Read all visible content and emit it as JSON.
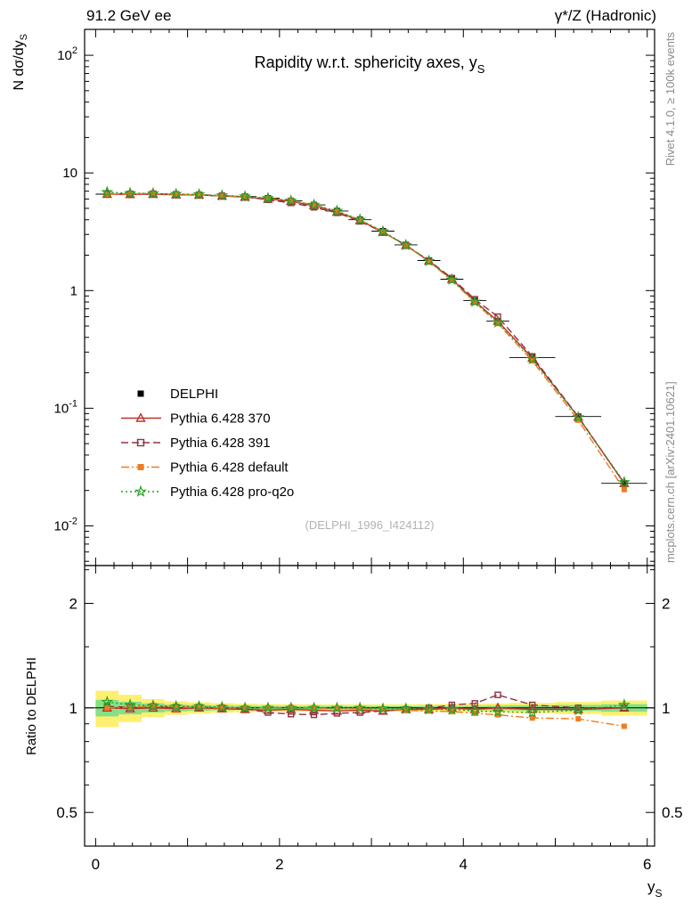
{
  "header": {
    "left": "91.2 GeV ee",
    "right": "γ*/Z (Hadronic)"
  },
  "side_notes": {
    "top_right": "Rivet 4.1.0, ≥ 100k events",
    "bottom_right": "mcplots.cern.ch [arXiv:2401.10621]"
  },
  "watermark": "(DELPHI_1996_I424112)",
  "chart_data": {
    "type": "line",
    "title_main": "Rapidity w.r.t. sphericity axes, y",
    "title_sub": "S",
    "xlabel_main": "y",
    "xlabel_sub": "S",
    "ylabel_top_main": "N  dσ/dy",
    "ylabel_top_sub": "S",
    "ylabel_bottom": "Ratio to DELPHI",
    "x_range": [
      -0.12,
      6.08
    ],
    "x_tick_labels": [
      {
        "v": 0,
        "label": "0"
      },
      {
        "v": 2,
        "label": "2"
      },
      {
        "v": 4,
        "label": "4"
      },
      {
        "v": 6,
        "label": "6"
      }
    ],
    "y_scale_top": "log",
    "y_range_top": [
      0.0046,
      166
    ],
    "y_tick_labels_top": [
      {
        "v": 100,
        "base": "10",
        "exp": "2"
      },
      {
        "v": 10,
        "base": "10",
        "exp": ""
      },
      {
        "v": 1,
        "base": "1",
        "exp": ""
      },
      {
        "v": 0.1,
        "base": "10",
        "exp": "-1"
      },
      {
        "v": 0.01,
        "base": "10",
        "exp": "-2"
      }
    ],
    "ratio_range": [
      0.4,
      2.57
    ],
    "ratio_tick_labels": [
      {
        "v": 2,
        "label": "2"
      },
      {
        "v": 1,
        "label": "1"
      },
      {
        "v": 0.5,
        "label": "0.5"
      }
    ],
    "x": [
      0.125,
      0.375,
      0.625,
      0.875,
      1.125,
      1.375,
      1.625,
      1.875,
      2.125,
      2.375,
      2.625,
      2.875,
      3.125,
      3.375,
      3.625,
      3.875,
      4.125,
      4.375,
      4.75,
      5.25,
      5.75
    ],
    "bin_edges": [
      0,
      0.25,
      0.5,
      0.75,
      1,
      1.25,
      1.5,
      1.75,
      2,
      2.25,
      2.5,
      2.75,
      3,
      3.25,
      3.5,
      3.75,
      4,
      4.25,
      4.5,
      5,
      5.5,
      6
    ],
    "series": [
      {
        "name": "DELPHI",
        "type": "data",
        "marker": "filled-square",
        "color": "#000000",
        "line": "none",
        "values": [
          6.6,
          6.6,
          6.6,
          6.55,
          6.5,
          6.4,
          6.3,
          6.1,
          5.8,
          5.35,
          4.75,
          4.0,
          3.2,
          2.45,
          1.8,
          1.25,
          0.82,
          0.55,
          0.27,
          0.085,
          0.023
        ]
      },
      {
        "name": "Pythia 6.428 370",
        "type": "mc",
        "marker": "open-triangle",
        "color": "#c03028",
        "line": "solid",
        "ratio_to_data": [
          1.0,
          0.995,
          1.0,
          0.995,
          1.0,
          0.995,
          0.99,
          0.985,
          0.99,
          0.985,
          0.98,
          0.985,
          0.98,
          0.99,
          0.99,
          1.0,
          0.99,
          1.0,
          0.99,
          0.99,
          1.0
        ]
      },
      {
        "name": "Pythia 6.428 391",
        "type": "mc",
        "marker": "open-square",
        "color": "#8f3342",
        "line": "dashed",
        "ratio_to_data": [
          1.01,
          1.005,
          1.01,
          1.005,
          1.005,
          1.0,
          0.995,
          0.97,
          0.96,
          0.955,
          0.965,
          0.97,
          0.98,
          0.99,
          1.0,
          1.02,
          1.03,
          1.09,
          1.02,
          1.0,
          1.0
        ]
      },
      {
        "name": "Pythia 6.428 default",
        "type": "mc",
        "marker": "filled-square",
        "color": "#ee7d22",
        "line": "dashdot",
        "ratio_to_data": [
          1.0,
          1.005,
          1.01,
          1.005,
          1.005,
          1.0,
          1.0,
          1.0,
          1.005,
          1.0,
          0.995,
          0.995,
          0.99,
          0.985,
          0.98,
          0.975,
          0.965,
          0.955,
          0.935,
          0.93,
          0.885
        ]
      },
      {
        "name": "Pythia 6.428 pro-q2o",
        "type": "mc",
        "marker": "open-star",
        "color": "#27a327",
        "line": "dotted",
        "ratio_to_data": [
          1.04,
          1.02,
          1.015,
          1.01,
          1.01,
          1.005,
          1.0,
          1.0,
          1.0,
          1.0,
          1.0,
          1.0,
          0.995,
          0.995,
          0.99,
          0.99,
          0.98,
          0.975,
          0.97,
          0.985,
          1.02
        ]
      }
    ],
    "bands": {
      "yellow_color": "#ffef70",
      "green_color": "#86e086",
      "yellow_halfwidth": [
        0.12,
        0.09,
        0.06,
        0.045,
        0.038,
        0.032,
        0.028,
        0.026,
        0.025,
        0.024,
        0.024,
        0.024,
        0.024,
        0.025,
        0.026,
        0.027,
        0.028,
        0.03,
        0.034,
        0.04,
        0.05
      ],
      "green_halfwidth": [
        0.055,
        0.042,
        0.03,
        0.022,
        0.019,
        0.016,
        0.014,
        0.013,
        0.012,
        0.012,
        0.012,
        0.012,
        0.012,
        0.012,
        0.013,
        0.013,
        0.014,
        0.015,
        0.017,
        0.02,
        0.025
      ]
    }
  }
}
